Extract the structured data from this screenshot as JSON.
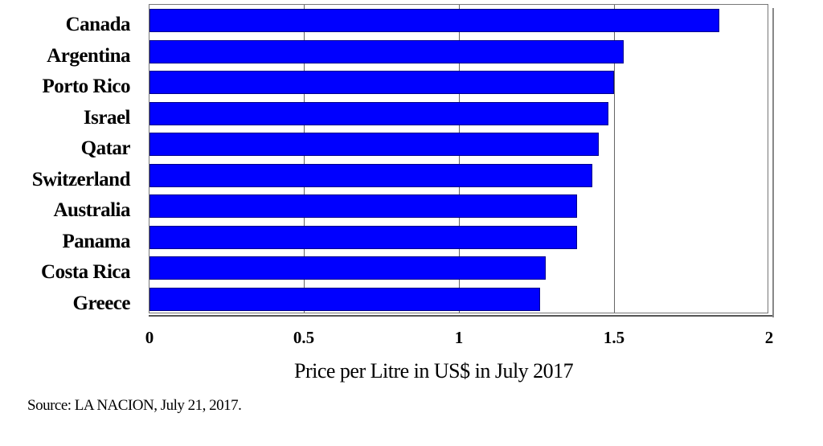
{
  "chart_data": {
    "type": "bar",
    "orientation": "horizontal",
    "title": "",
    "categories": [
      "Canada",
      "Argentina",
      "Porto Rico",
      "Israel",
      "Qatar",
      "Switzerland",
      "Australia",
      "Panama",
      "Costa Rica",
      "Greece"
    ],
    "values": [
      1.84,
      1.53,
      1.5,
      1.48,
      1.45,
      1.43,
      1.38,
      1.38,
      1.28,
      1.26
    ],
    "xlabel": "Price per Litre in US$ in July 2017",
    "ylabel": "",
    "xlim": [
      0,
      2
    ],
    "xticks": [
      "0",
      "0.5",
      "1",
      "1.5",
      "2"
    ],
    "grid": "vertical",
    "bar_color": "#0000ff",
    "legend": null
  },
  "source": "Source: LA NACION, July 21, 2017."
}
